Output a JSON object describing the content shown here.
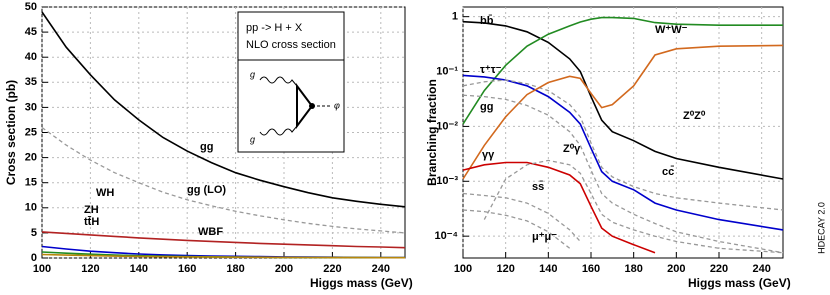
{
  "chart_data": [
    {
      "type": "line",
      "x_label": "Higgs mass   (GeV)",
      "y_label": "Cross section   (pb)",
      "x": [
        100,
        110,
        120,
        130,
        140,
        150,
        160,
        170,
        180,
        190,
        200,
        210,
        220,
        230,
        240,
        250
      ],
      "xlim": [
        100,
        250
      ],
      "xticks": [
        100,
        120,
        140,
        160,
        180,
        200,
        220,
        240
      ],
      "ylim": [
        0,
        50
      ],
      "yticks": [
        0,
        5,
        10,
        15,
        20,
        25,
        30,
        35,
        40,
        45,
        50
      ],
      "grid": true,
      "log_y": false,
      "annotations": [
        "pp -> H + X",
        "NLO cross section",
        "g",
        "g",
        "φ"
      ],
      "series": [
        {
          "name": "gg",
          "color": "#000000",
          "dashed": false,
          "values": [
            49,
            42,
            36.5,
            31.5,
            27.5,
            24,
            21.3,
            19,
            17,
            15.5,
            14.2,
            13,
            12,
            11.3,
            10.7,
            10.2
          ]
        },
        {
          "name": "gg (LO)",
          "color": "#999999",
          "dashed": true,
          "values": [
            26,
            22.5,
            19.5,
            17,
            15,
            13.1,
            11.6,
            10.4,
            9.3,
            8.4,
            7.6,
            6.9,
            6.3,
            5.8,
            5.4,
            5
          ]
        },
        {
          "name": "WBF",
          "color": "#b22222",
          "dashed": false,
          "values": [
            5.2,
            4.9,
            4.6,
            4.3,
            4.0,
            3.75,
            3.5,
            3.3,
            3.1,
            2.9,
            2.75,
            2.6,
            2.45,
            2.3,
            2.2,
            2.05
          ]
        },
        {
          "name": "WH",
          "color": "#0000cc",
          "dashed": false,
          "values": [
            2.3,
            1.8,
            1.35,
            1.05,
            0.8,
            0.62,
            0.5,
            0.4,
            0.33,
            0.27,
            0.22,
            0.18,
            0.15,
            0.12,
            0.1,
            0.08
          ]
        },
        {
          "name": "ZH",
          "color": "#228b22",
          "dashed": false,
          "values": [
            1.2,
            0.95,
            0.75,
            0.58,
            0.45,
            0.36,
            0.29,
            0.23,
            0.19,
            0.15,
            0.12,
            0.1,
            0.085,
            0.07,
            0.06,
            0.05
          ]
        },
        {
          "name": "tt̄H",
          "color": "#b8860b",
          "dashed": false,
          "values": [
            0.7,
            0.57,
            0.47,
            0.38,
            0.31,
            0.26,
            0.22,
            0.18,
            0.15,
            0.13,
            0.11,
            0.09,
            0.08,
            0.07,
            0.06,
            0.05
          ]
        }
      ]
    },
    {
      "type": "line",
      "x_label": "Higgs mass   (GeV)",
      "y_label": "Branching fraction",
      "x": [
        100,
        110,
        120,
        130,
        140,
        150,
        155,
        160,
        165,
        170,
        180,
        190,
        200,
        220,
        250
      ],
      "xlim": [
        100,
        250
      ],
      "xticks": [
        100,
        120,
        140,
        160,
        180,
        200,
        220,
        240
      ],
      "ylim": [
        4e-05,
        1.5
      ],
      "yticks": [
        {
          "value": 0.0001,
          "label": "10⁻⁴"
        },
        {
          "value": 0.001,
          "label": "10⁻³"
        },
        {
          "value": 0.01,
          "label": "10⁻²"
        },
        {
          "value": 0.1,
          "label": "10⁻¹"
        },
        1
      ],
      "grid": true,
      "log_y": true,
      "annotations": [
        "HDECAY 2.0"
      ],
      "series": [
        {
          "name": "bb̄",
          "color": "#000000",
          "dashed": false,
          "values": [
            0.81,
            0.77,
            0.68,
            0.53,
            0.34,
            0.17,
            0.1,
            0.035,
            0.013,
            0.008,
            0.0055,
            0.0035,
            0.0026,
            0.0018,
            0.0011
          ]
        },
        {
          "name": "W⁺W⁻",
          "color": "#228b22",
          "dashed": false,
          "values": [
            0.011,
            0.045,
            0.13,
            0.29,
            0.48,
            0.68,
            0.8,
            0.9,
            0.96,
            0.96,
            0.93,
            0.78,
            0.73,
            0.7,
            0.7
          ]
        },
        {
          "name": "τ⁺τ⁻",
          "color": "#0000cc",
          "dashed": false,
          "values": [
            0.085,
            0.08,
            0.07,
            0.055,
            0.035,
            0.018,
            0.011,
            0.004,
            0.0015,
            0.001,
            0.0007,
            0.0004,
            0.0003,
            0.0002,
            0.00013
          ]
        },
        {
          "name": "gg",
          "color": "#999999",
          "dashed": true,
          "values": [
            0.055,
            0.065,
            0.07,
            0.06,
            0.045,
            0.025,
            0.015,
            0.005,
            0.0018,
            0.0012,
            0.0008,
            0.0006,
            0.0005,
            0.0004,
            0.0003
          ]
        },
        {
          "name": "Z⁰Z⁰",
          "color": "#d2691e",
          "dashed": false,
          "values": [
            0.0011,
            0.0045,
            0.015,
            0.038,
            0.063,
            0.082,
            0.075,
            0.04,
            0.022,
            0.025,
            0.055,
            0.2,
            0.26,
            0.29,
            0.3
          ]
        },
        {
          "name": "γγ",
          "color": "#cc0000",
          "dashed": false,
          "values": [
            0.0016,
            0.002,
            0.0022,
            0.0022,
            0.0018,
            0.0013,
            0.0009,
            0.00035,
            0.00014,
            0.0001,
            7e-05,
            5e-05,
            null,
            null,
            null
          ]
        },
        {
          "name": "Z⁰γ",
          "color": "#999999",
          "dashed": true,
          "values": [
            null,
            0.0002,
            0.0011,
            0.002,
            0.0024,
            0.002,
            0.0014,
            0.0006,
            0.00025,
            0.00018,
            0.00013,
            0.0001,
            8e-05,
            6e-05,
            5e-05
          ]
        },
        {
          "name": "cc̄",
          "color": "#999999",
          "dashed": true,
          "values": [
            0.037,
            0.035,
            0.031,
            0.024,
            0.016,
            0.008,
            0.0045,
            0.0016,
            0.0006,
            0.0004,
            0.00025,
            0.00017,
            0.00012,
            8e-05,
            5e-05
          ]
        },
        {
          "name": "ss̄",
          "color": "#999999",
          "dashed": true,
          "values": [
            0.0006,
            0.00055,
            0.0005,
            0.0004,
            0.00026,
            0.00013,
            8e-05,
            null,
            null,
            null,
            null,
            null,
            null,
            null,
            null
          ]
        },
        {
          "name": "μ⁺μ⁻",
          "color": "#999999",
          "dashed": true,
          "values": [
            0.0003,
            0.00028,
            0.00024,
            0.00019,
            0.00012,
            6e-05,
            null,
            null,
            null,
            null,
            null,
            null,
            null,
            null,
            null
          ]
        }
      ]
    }
  ]
}
